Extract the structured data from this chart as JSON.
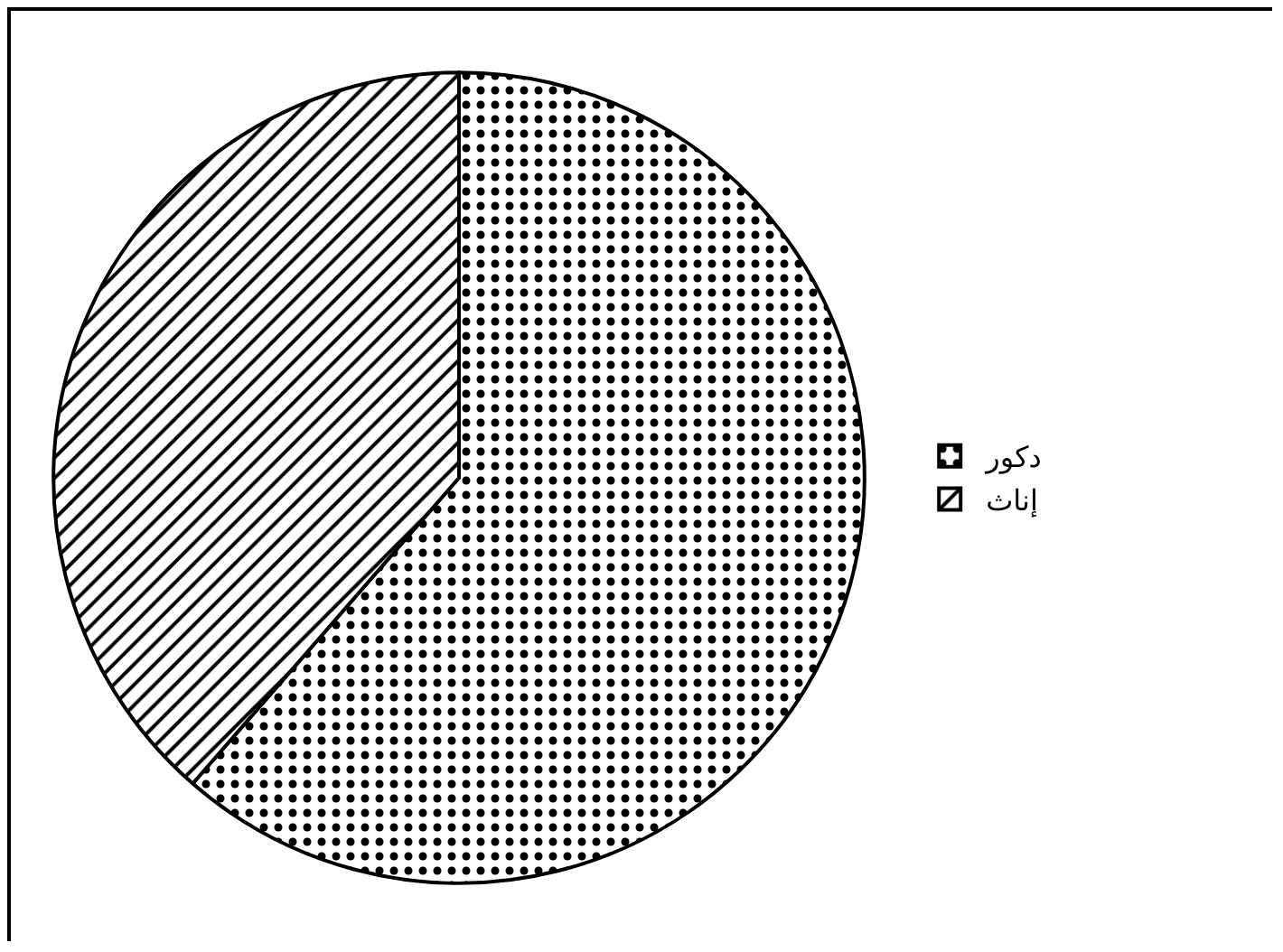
{
  "chart_data": {
    "type": "pie",
    "categories": [
      "دكور",
      "إناث"
    ],
    "values": [
      61.4,
      38.6
    ],
    "colors": [
      "#000000",
      "#000000"
    ],
    "legend": "right"
  }
}
